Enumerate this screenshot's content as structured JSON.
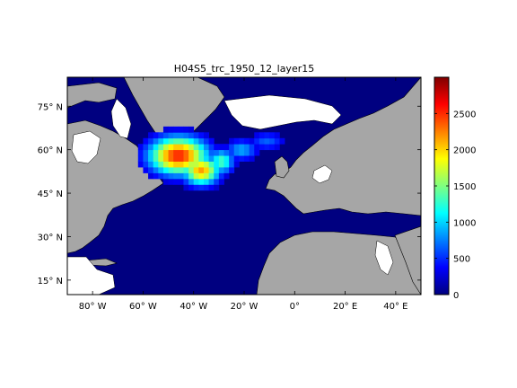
{
  "figure": {
    "title": "H04S5_trc_1950_12_layer15"
  },
  "map": {
    "lon_range": [
      -90,
      50
    ],
    "lat_range": [
      10,
      85
    ],
    "lon_ticks": [
      {
        "value": -80,
        "label": "80° W"
      },
      {
        "value": -60,
        "label": "60° W"
      },
      {
        "value": -40,
        "label": "40° W"
      },
      {
        "value": -20,
        "label": "20° W"
      },
      {
        "value": 0,
        "label": "0°"
      },
      {
        "value": 20,
        "label": "20° E"
      },
      {
        "value": 40,
        "label": "40° E"
      }
    ],
    "lat_ticks": [
      {
        "value": 75,
        "label": "75° N"
      },
      {
        "value": 60,
        "label": "60° N"
      },
      {
        "value": 45,
        "label": "45° N"
      },
      {
        "value": 30,
        "label": "30° N"
      },
      {
        "value": 15,
        "label": "15° N"
      }
    ],
    "colors": {
      "ocean_low": "#000080",
      "land": "#a6a6a6",
      "no_data": "#ffffff",
      "coast": "#000000"
    }
  },
  "colorbar": {
    "range": [
      0,
      3000
    ],
    "ticks": [
      {
        "value": 0,
        "label": "0"
      },
      {
        "value": 500,
        "label": "500"
      },
      {
        "value": 1000,
        "label": "1000"
      },
      {
        "value": 1500,
        "label": "1500"
      },
      {
        "value": 2000,
        "label": "2000"
      },
      {
        "value": 2500,
        "label": "2500"
      }
    ],
    "colormap": "jet"
  }
}
